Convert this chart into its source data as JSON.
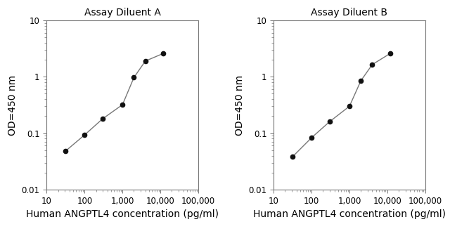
{
  "title_A": "Assay Diluent A",
  "title_B": "Assay Diluent B",
  "xlabel": "Human ANGPTL4 concentration (pg/ml)",
  "ylabel": "OD=450 nm",
  "x_A": [
    31.25,
    100,
    300,
    1000,
    2000,
    4000,
    12000
  ],
  "y_A": [
    0.048,
    0.093,
    0.18,
    0.32,
    0.97,
    1.9,
    2.6
  ],
  "x_B": [
    31.25,
    100,
    300,
    1000,
    2000,
    4000,
    12000
  ],
  "y_B": [
    0.038,
    0.083,
    0.16,
    0.3,
    0.85,
    1.65,
    2.6
  ],
  "xlim_min": 10,
  "xlim_max": 100000,
  "ylim_min": 0.01,
  "ylim_max": 10,
  "line_color": "#777777",
  "marker_color": "#111111",
  "title_fontsize": 10,
  "label_fontsize": 10,
  "tick_fontsize": 8.5,
  "background_color": "#ffffff",
  "spine_color": "#777777"
}
